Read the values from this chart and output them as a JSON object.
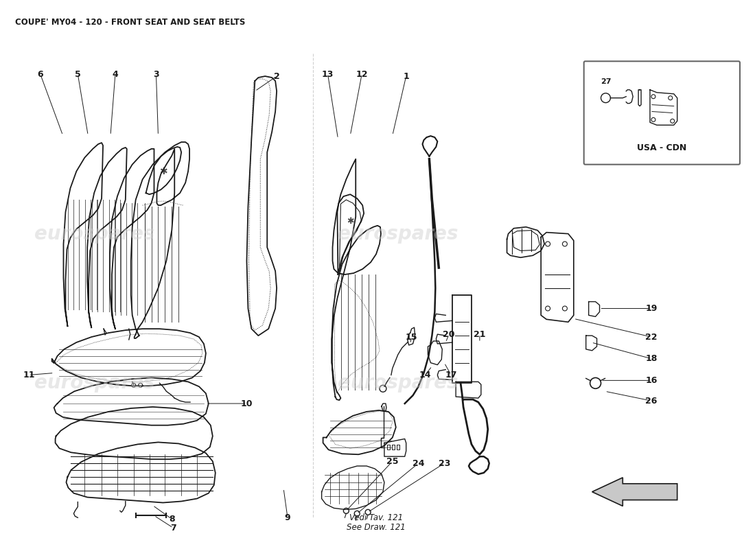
{
  "title": "COUPE' MY04 - 120 - FRONT SEAT AND SEAT BELTS",
  "title_fontsize": 8.5,
  "bg_color": "#ffffff",
  "line_color": "#1a1a1a",
  "watermark_color": "#cccccc",
  "label_fontsize": 9,
  "vedi_text": [
    "Vedi Tav. 121",
    "See Draw. 121"
  ],
  "usa_cdn_text": "USA - CDN",
  "arrow_color": "#cccccc"
}
